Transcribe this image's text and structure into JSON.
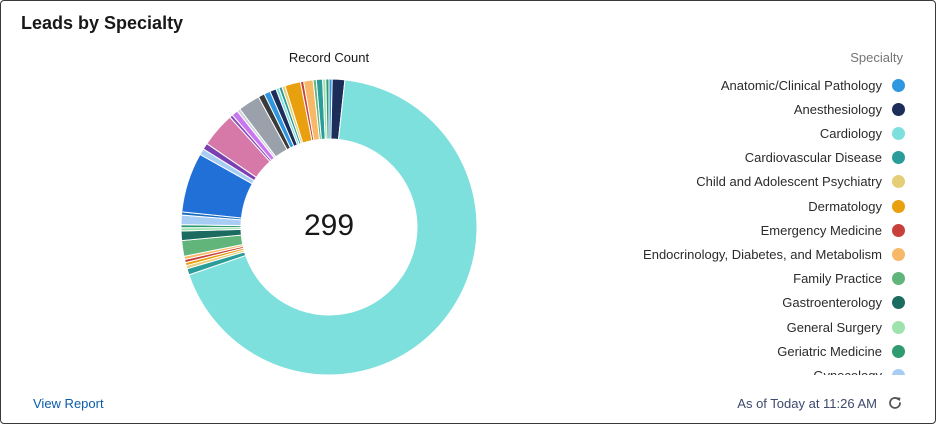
{
  "card": {
    "title": "Leads by Specialty",
    "view_report": "View Report",
    "timestamp": "As of Today at 11:26 AM"
  },
  "icons": {
    "refresh": "refresh-icon"
  },
  "chart_data": {
    "type": "pie",
    "donut": true,
    "title": "Record Count",
    "center_total": "299",
    "legend_title": "Specialty",
    "legend_position": "right",
    "slices": [
      {
        "label": "Anatomic/Clinical Pathology",
        "value": 1,
        "color": "#2f97df"
      },
      {
        "label": "Anesthesiology",
        "value": 4,
        "color": "#1c2d5a"
      },
      {
        "label": "Cardiology",
        "value": 198,
        "color": "#7de0dc"
      },
      {
        "label": "Cardiovascular Disease",
        "value": 2,
        "color": "#2a9d9a"
      },
      {
        "label": "Child and Adolescent Psychiatry",
        "value": 1,
        "color": "#e6cd78"
      },
      {
        "label": "Dermatology",
        "value": 1,
        "color": "#e8a00e"
      },
      {
        "label": "Emergency Medicine",
        "value": 1,
        "color": "#c9403b"
      },
      {
        "label": "Endocrinology, Diabetes, and Metabolism",
        "value": 1,
        "color": "#f7b867"
      },
      {
        "label": "Family Practice",
        "value": 5,
        "color": "#62b57a"
      },
      {
        "label": "Gastroenterology",
        "value": 3,
        "color": "#1b6b60"
      },
      {
        "label": "General Surgery",
        "value": 1,
        "color": "#9ee2ad"
      },
      {
        "label": "Geriatric Medicine",
        "value": 1,
        "color": "#2f9b6f"
      },
      {
        "label": "Gynecology",
        "value": 3,
        "color": "#a7cdf5"
      },
      {
        "value": 1,
        "color": "#1c6ec2"
      },
      {
        "value": 19,
        "color": "#2070d8"
      },
      {
        "value": 2,
        "color": "#a7cdf5"
      },
      {
        "value": 2,
        "color": "#7a3fb0"
      },
      {
        "value": 11,
        "color": "#d678a8"
      },
      {
        "value": 1,
        "color": "#8a4ab8"
      },
      {
        "value": 2,
        "color": "#c877f0"
      },
      {
        "value": 1,
        "color": "#cdd2d8"
      },
      {
        "value": 7,
        "color": "#9aa1ab"
      },
      {
        "value": 2,
        "color": "#3a3a3a"
      },
      {
        "value": 2,
        "color": "#2f97df"
      },
      {
        "value": 2,
        "color": "#1c2d5a"
      },
      {
        "value": 1,
        "color": "#7de0dc"
      },
      {
        "value": 1,
        "color": "#2a9d9a"
      },
      {
        "value": 1,
        "color": "#e6cd78"
      },
      {
        "value": 5,
        "color": "#e8a00e"
      },
      {
        "value": 1,
        "color": "#c9403b"
      },
      {
        "value": 3,
        "color": "#f7b867"
      },
      {
        "value": 1,
        "color": "#62b57a"
      },
      {
        "value": 2,
        "color": "#2a9d9a"
      },
      {
        "value": 1,
        "color": "#9ee2ad"
      },
      {
        "value": 1,
        "color": "#2f9b6f"
      }
    ]
  }
}
